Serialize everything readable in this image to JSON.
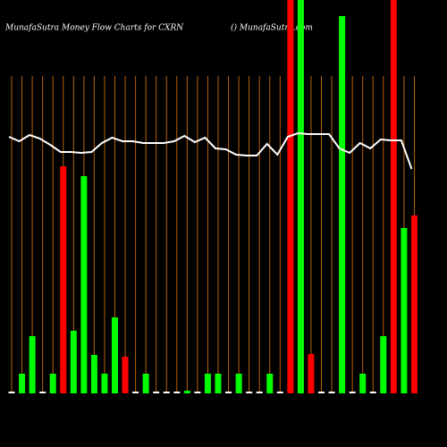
{
  "chart_data": {
    "type": "bar",
    "title": "MunafaSutra  Money Flow  Charts for CXRN",
    "subtitle": "() MunafaSutra.com",
    "values": [
      2,
      22,
      64,
      2,
      22,
      254,
      70,
      243,
      43,
      22,
      85,
      41,
      2,
      22,
      2,
      2,
      2,
      3,
      2,
      22,
      22,
      2,
      22,
      2,
      2,
      22,
      2,
      440,
      440,
      44,
      2,
      2,
      422,
      2,
      22,
      2,
      64,
      440,
      185,
      199
    ],
    "colors": [
      "#ffffff",
      "#00ff00",
      "#00ff00",
      "#ffffff",
      "#00ff00",
      "#ff0000",
      "#00ff00",
      "#00ff00",
      "#00ff00",
      "#00ff00",
      "#00ff00",
      "#ff0000",
      "#ffffff",
      "#00ff00",
      "#ffffff",
      "#ffffff",
      "#ffffff",
      "#00ff00",
      "#ffffff",
      "#00ff00",
      "#00ff00",
      "#ffffff",
      "#00ff00",
      "#ffffff",
      "#ffffff",
      "#00ff00",
      "#ffffff",
      "#ff0000",
      "#00ff00",
      "#ff0000",
      "#ffffff",
      "#ffffff",
      "#00ff00",
      "#ffffff",
      "#00ff00",
      "#ffffff",
      "#00ff00",
      "#ff0000",
      "#00ff00",
      "#ff0000"
    ],
    "line": {
      "color": "#ffffff",
      "values": [
        287,
        282,
        289,
        285,
        278,
        270,
        270,
        269,
        270,
        280,
        286,
        282,
        282,
        280,
        280,
        280,
        282,
        288,
        281,
        286,
        274,
        273,
        267,
        266,
        266,
        279,
        267,
        287,
        291,
        290,
        290,
        290,
        274,
        269,
        280,
        274,
        284,
        283,
        283,
        251
      ]
    },
    "ylim": [
      0,
      440
    ]
  }
}
